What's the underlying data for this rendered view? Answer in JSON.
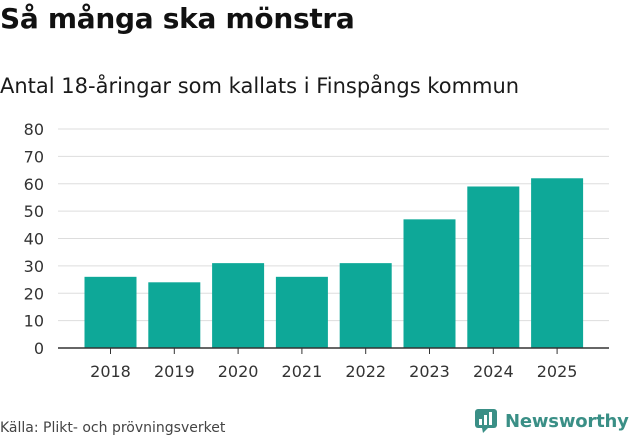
{
  "header": {
    "title": "Så många ska mönstra",
    "subtitle": "Antal 18-åringar som kallats i Finspångs kommun"
  },
  "chart_data": {
    "type": "bar",
    "title": "Så många ska mönstra",
    "subtitle": "Antal 18-åringar som kallats i Finspångs kommun",
    "categories": [
      "2018",
      "2019",
      "2020",
      "2021",
      "2022",
      "2023",
      "2024",
      "2025"
    ],
    "values": [
      26,
      24,
      31,
      26,
      31,
      47,
      59,
      62
    ],
    "xlabel": "",
    "ylabel": "",
    "ylim": [
      0,
      80
    ],
    "yticks": [
      0,
      10,
      20,
      30,
      40,
      50,
      60,
      70,
      80
    ],
    "grid": true,
    "legend": "none"
  },
  "footer": {
    "source": "Källa: Plikt- och prövningsverket",
    "brand": "Newsworthy"
  },
  "colors": {
    "bar": "#0ea898",
    "grid": "#dddddd",
    "axis": "#333333",
    "brand": "#3a8f86"
  }
}
